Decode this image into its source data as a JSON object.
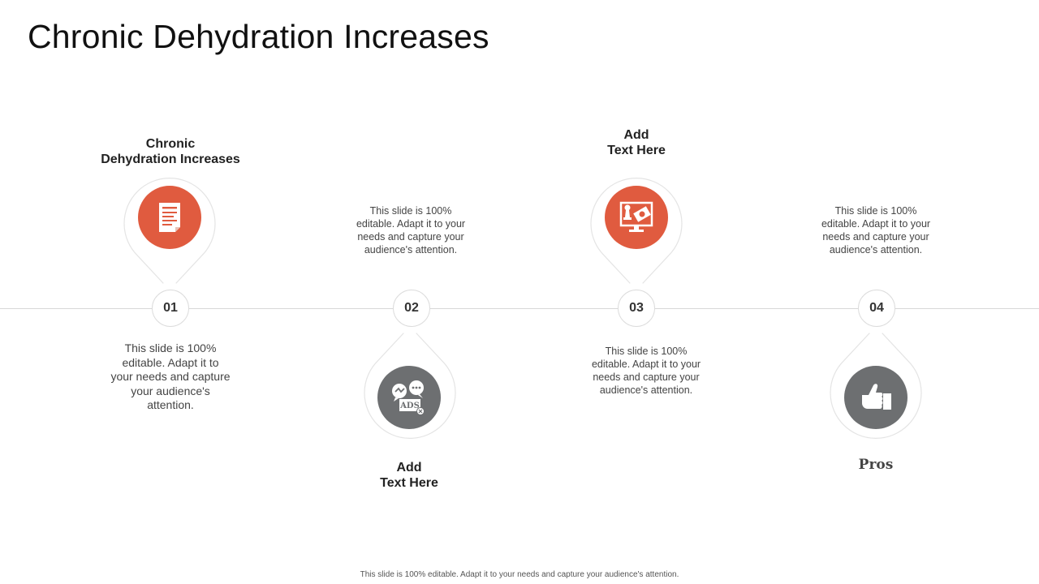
{
  "title": "Chronic Dehydration Increases",
  "steps": [
    {
      "number": "01",
      "heading": "Chronic\nDehydration Increases",
      "description": "This slide is 100% editable. Adapt it to your needs and capture your audience's attention.",
      "icon": "document-icon",
      "color": "#e05b3f"
    },
    {
      "number": "02",
      "heading": "Add\nText Here",
      "description": "This slide is 100% editable. Adapt it to your needs and capture your audience's attention.",
      "icon": "ads-chat-icon",
      "color": "#6d6f71"
    },
    {
      "number": "03",
      "heading": "Add\nText Here",
      "description": "This slide is 100% editable. Adapt it to your needs and capture your audience's attention.",
      "icon": "money-chess-monitor-icon",
      "color": "#e05b3f"
    },
    {
      "number": "04",
      "heading": "Pros",
      "description": "This slide is 100% editable. Adapt it to your needs and capture your audience's attention.",
      "icon": "thumbs-up-icon",
      "color": "#6d6f71"
    }
  ],
  "footer": "This slide is 100% editable. Adapt it to your needs and capture your audience's attention."
}
